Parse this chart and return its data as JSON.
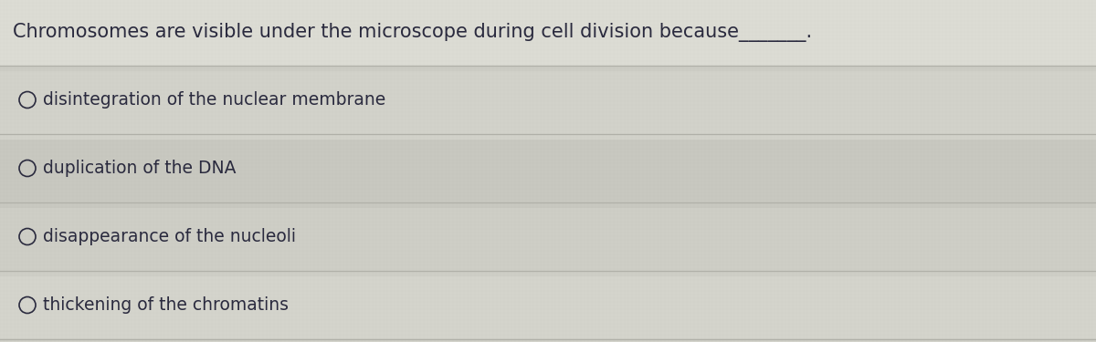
{
  "title": "Chromosomes are visible under the microscope during cell division because_______.",
  "options": [
    "disintegration of the nuclear membrane",
    "duplication of the DNA",
    "disappearance of the nucleoli",
    "thickening of the chromatins"
  ],
  "bg_color": "#d4d4cc",
  "title_bg_color": "#e0e0d8",
  "option_bg_colors": [
    "#c8c8c0",
    "#d0d0c8",
    "#c4c4bc",
    "#c0c0b8"
  ],
  "text_color": "#2a2a3e",
  "title_fontsize": 15,
  "option_fontsize": 13.5,
  "line_color": "#b0b0a8",
  "underline_color": "#888888"
}
